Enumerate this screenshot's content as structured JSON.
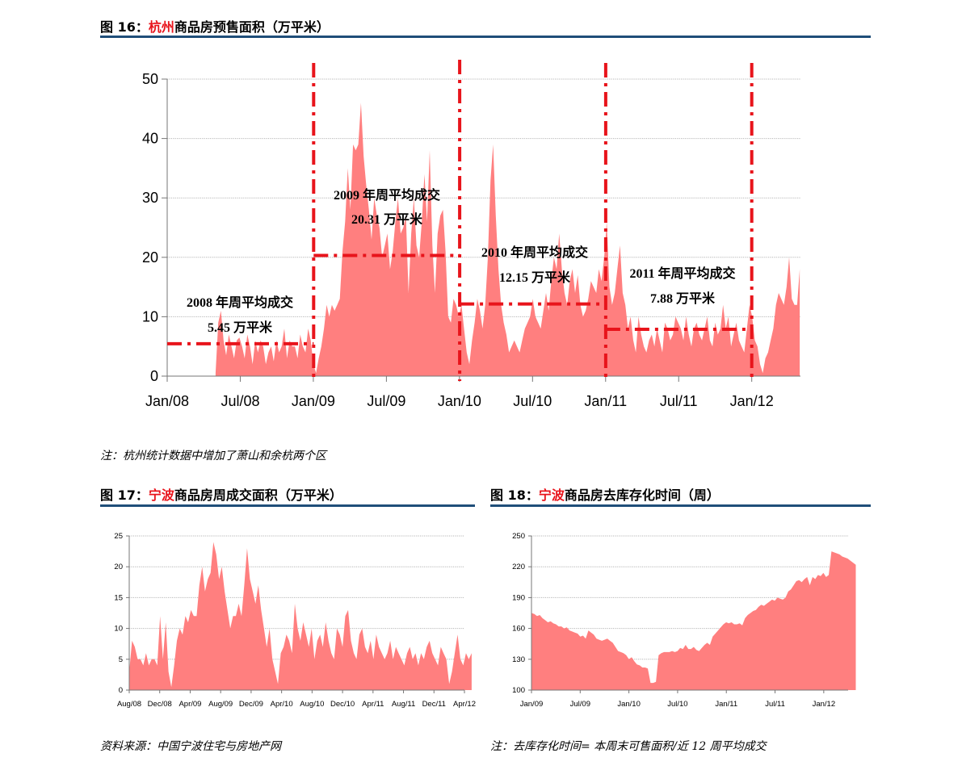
{
  "colors": {
    "area": "#ff7f7f",
    "rule": "#1f4e79",
    "highlight": "#e8141b",
    "divider": "#e8141b"
  },
  "fig16": {
    "title_prefix": "图 16：",
    "title_city": "杭州",
    "title_suffix": "商品房预售面积（万平米）",
    "note": "注：杭州统计数据中增加了萧山和余杭两个区"
  },
  "fig17": {
    "title_prefix": "图 17：",
    "title_city": "宁波",
    "title_suffix": "商品房周成交面积（万平米）",
    "source": "资料来源：中国宁波住宅与房地产网"
  },
  "fig18": {
    "title_prefix": "图 18：",
    "title_city": "宁波",
    "title_suffix": "商品房去库存化时间（周）",
    "note": "注：去库存化时间= 本周末可售面积/近 12 周平均成交"
  },
  "chart_data": [
    {
      "id": "hangzhou",
      "type": "area",
      "ylim": [
        0,
        50
      ],
      "yticks": [
        0,
        10,
        20,
        30,
        40,
        50
      ],
      "xlim": [
        "2008-01",
        "2012-05"
      ],
      "xticks": [
        "Jan/08",
        "Jul/08",
        "Jan/09",
        "Jul/09",
        "Jan/10",
        "Jul/10",
        "Jan/11",
        "Jul/11",
        "Jan/12"
      ],
      "grid": true,
      "series": [
        {
          "x_start": "2008-05-01",
          "x_end": "2012-04-30",
          "values": [
            0.5,
            9,
            11,
            6,
            3.5,
            7,
            5,
            3,
            6,
            6.5,
            5,
            3,
            7,
            5,
            2,
            6,
            4,
            6,
            5,
            2,
            4,
            5,
            2.5,
            6,
            4,
            5,
            8,
            3,
            6,
            5,
            5,
            3,
            7,
            5,
            4,
            8,
            6,
            2,
            0.5,
            3,
            5,
            8,
            12,
            10,
            12,
            11,
            12,
            13,
            21,
            26,
            35,
            28,
            39,
            38,
            39,
            46,
            37,
            32,
            28,
            23,
            30,
            27,
            25,
            20,
            22,
            24,
            18,
            21,
            26,
            30,
            24,
            25,
            27,
            14,
            24,
            30,
            22,
            20,
            26,
            34,
            26,
            38,
            22,
            14,
            24,
            27,
            28,
            21,
            10,
            9,
            13,
            12,
            10,
            12,
            8,
            4,
            2,
            6,
            9,
            13,
            11,
            8,
            12,
            20,
            33,
            39,
            27,
            18,
            12,
            9,
            7,
            4,
            5,
            6,
            5,
            4,
            6,
            8,
            9,
            10,
            13,
            10,
            9,
            8,
            11,
            14,
            11,
            16,
            20,
            18,
            24,
            18,
            14,
            12,
            16,
            18,
            14,
            17,
            12,
            10,
            11,
            13,
            16,
            15,
            14,
            18,
            16,
            20,
            26,
            15,
            12,
            14,
            18,
            22,
            14,
            12,
            8,
            10,
            6,
            4,
            10,
            7,
            5,
            4,
            6,
            7,
            5,
            8,
            6,
            4,
            9,
            8,
            6,
            7,
            10,
            9,
            8,
            6,
            10,
            7,
            5,
            8,
            9,
            7,
            6,
            8,
            10,
            6,
            5,
            9,
            7,
            8,
            12,
            8,
            10,
            5,
            7,
            9,
            6,
            5,
            4,
            8,
            12,
            10,
            6,
            5,
            2,
            0.5,
            3,
            4,
            6,
            8,
            12,
            14,
            13,
            12,
            15,
            20,
            13,
            12,
            12,
            18
          ]
        }
      ],
      "periods": [
        {
          "start": "2008-01-01",
          "end": "2009-01-01",
          "mean": 5.45,
          "label_line1": "2008 年周平均成交",
          "label_line2": "5.45 万平米"
        },
        {
          "start": "2009-01-01",
          "end": "2010-01-01",
          "mean": 20.31,
          "label_line1": "2009 年周平均成交",
          "label_line2": "20.31 万平米"
        },
        {
          "start": "2010-01-01",
          "end": "2011-01-01",
          "mean": 12.15,
          "label_line1": "2010 年周平均成交",
          "label_line2": "12.15 万平米"
        },
        {
          "start": "2011-01-01",
          "end": "2012-01-01",
          "mean": 7.88,
          "label_line1": "2011 年周平均成交",
          "label_line2": "7.88 万平米"
        }
      ]
    },
    {
      "id": "ningbo-weekly",
      "type": "area",
      "ylim": [
        0,
        25
      ],
      "yticks": [
        0,
        5,
        10,
        15,
        20,
        25
      ],
      "xlim": [
        "2008-08",
        "2012-04"
      ],
      "xticks": [
        "Aug/08",
        "Dec/08",
        "Apr/09",
        "Aug/09",
        "Dec/09",
        "Apr/10",
        "Aug/10",
        "Dec/10",
        "Apr/11",
        "Aug/11",
        "Dec/11",
        "Apr/12"
      ],
      "grid": true,
      "series": [
        {
          "x_start": "2008-08-01",
          "x_end": "2012-04-30",
          "values": [
            3,
            8,
            7,
            5,
            5,
            4,
            6,
            4,
            5,
            5,
            4,
            12,
            5,
            11,
            3,
            0.5,
            4,
            8,
            10,
            9,
            12,
            11,
            13,
            12,
            12,
            17,
            20,
            16,
            18,
            19,
            24,
            22,
            18,
            20,
            16,
            13,
            10,
            12,
            12,
            14,
            12,
            17,
            23,
            18,
            16,
            14,
            17,
            13,
            10,
            7,
            10,
            5,
            3,
            1,
            6,
            7,
            9,
            8,
            6,
            14,
            10,
            8,
            11,
            9,
            7,
            10,
            5,
            8,
            9,
            7,
            11,
            8,
            6,
            5,
            10,
            9,
            7,
            12,
            13,
            8,
            6,
            5,
            9,
            10,
            7,
            6,
            8,
            5,
            9,
            7,
            6,
            5,
            6,
            8,
            5,
            7,
            6,
            5,
            4,
            6,
            7,
            5,
            6,
            4,
            6,
            5,
            7,
            8,
            6,
            5,
            4,
            7,
            6,
            5,
            1,
            3,
            6,
            9,
            5,
            4,
            6,
            5,
            6
          ]
        }
      ]
    },
    {
      "id": "ningbo-destock",
      "type": "area",
      "ylim": [
        100,
        250
      ],
      "yticks": [
        100,
        130,
        160,
        190,
        220,
        250
      ],
      "xlim": [
        "2009-01",
        "2012-04"
      ],
      "xticks": [
        "Jan/09",
        "Jul/09",
        "Jan/10",
        "Jul/10",
        "Jan/11",
        "Jul/11",
        "Jan/12"
      ],
      "grid": true,
      "series": [
        {
          "x_start": "2009-01-01",
          "x_end": "2012-04-30",
          "values": [
            175,
            174,
            172,
            173,
            170,
            168,
            166,
            167,
            165,
            164,
            162,
            162,
            160,
            161,
            158,
            157,
            156,
            155,
            152,
            153,
            150,
            158,
            156,
            154,
            150,
            149,
            148,
            149,
            150,
            148,
            146,
            142,
            138,
            137,
            136,
            134,
            130,
            132,
            128,
            125,
            124,
            122,
            122,
            121,
            107,
            107,
            108,
            134,
            136,
            137,
            137,
            137,
            138,
            137,
            138,
            141,
            140,
            144,
            140,
            140,
            142,
            139,
            138,
            141,
            144,
            146,
            144,
            152,
            155,
            158,
            161,
            164,
            166,
            165,
            166,
            164,
            164,
            165,
            163,
            170,
            173,
            175,
            177,
            178,
            181,
            183,
            182,
            184,
            186,
            188,
            187,
            190,
            189,
            188,
            190,
            196,
            198,
            202,
            206,
            207,
            205,
            208,
            210,
            202,
            210,
            208,
            212,
            211,
            214,
            210,
            212,
            235,
            234,
            233,
            232,
            230,
            229,
            228,
            226,
            224,
            222
          ]
        }
      ]
    }
  ]
}
